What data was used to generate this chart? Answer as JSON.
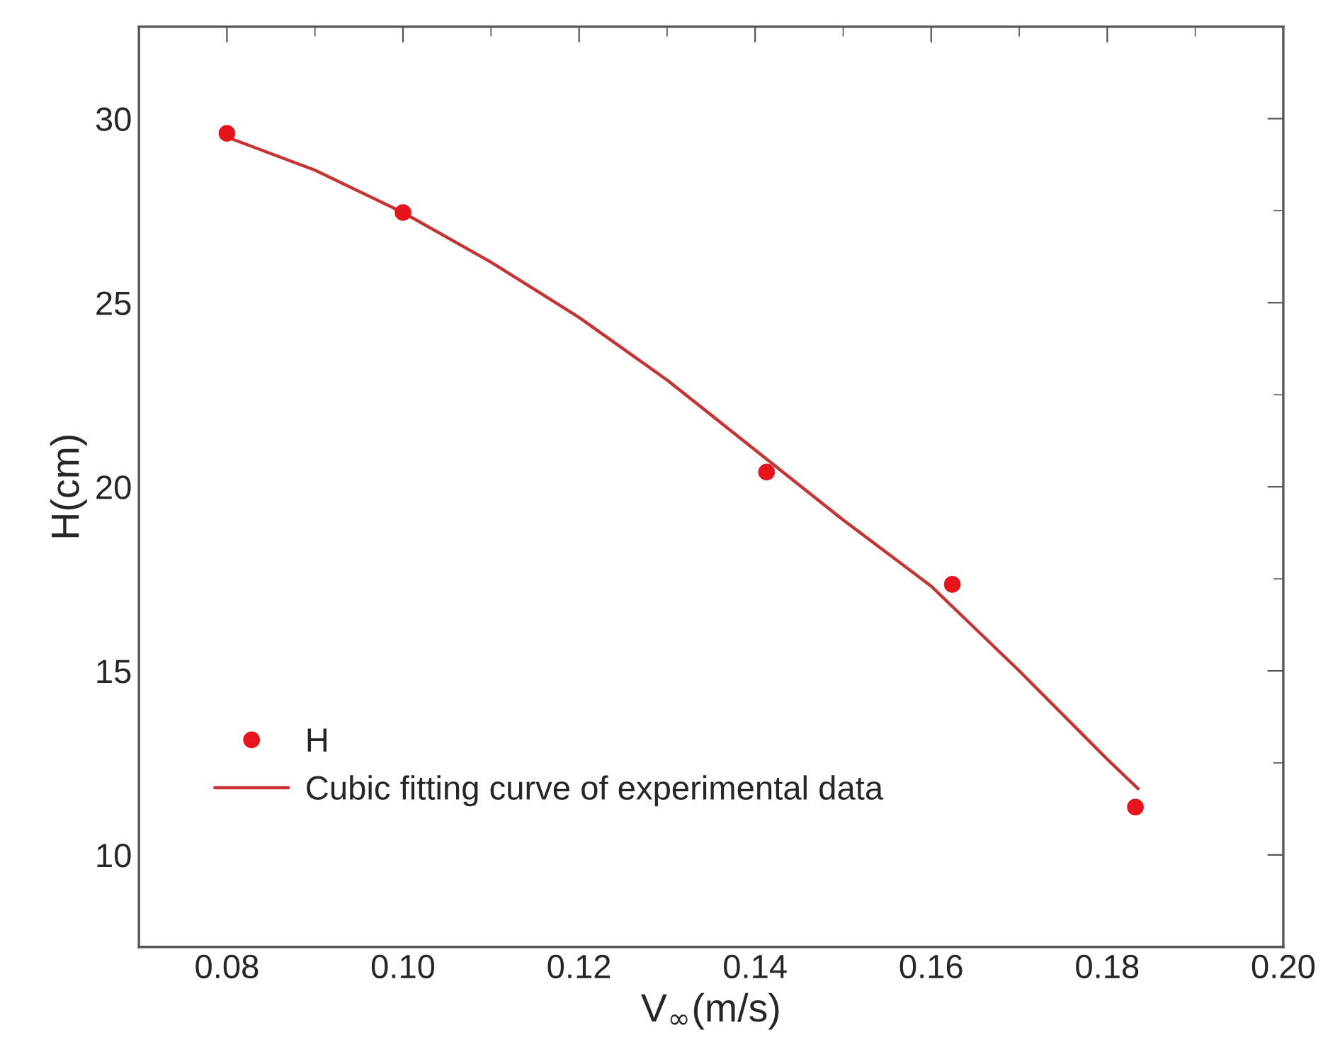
{
  "chart_data": {
    "type": "scatter",
    "xlabel": "V$_{∞}$(m/s)",
    "ylabel": "H(cm)",
    "xlim": [
      0.07,
      0.2
    ],
    "xticks": [
      {
        "value": 0.08,
        "label": "0.08"
      },
      {
        "value": 0.1,
        "label": "0.10"
      },
      {
        "value": 0.12,
        "label": "0.12"
      },
      {
        "value": 0.14,
        "label": "0.14"
      },
      {
        "value": 0.16,
        "label": "0.16"
      },
      {
        "value": 0.18,
        "label": "0.18"
      },
      {
        "value": 0.2,
        "label": "0.20"
      }
    ],
    "ylim": [
      7.5,
      32.5
    ],
    "yticks": [
      10,
      15,
      20,
      25,
      30
    ],
    "grid": false,
    "legend": "bottom left",
    "series": [
      {
        "name": "H",
        "marker": "circle",
        "color": "#e8141c",
        "x": [
          0.08,
          0.1,
          0.1413,
          0.1624,
          0.1832
        ],
        "values": [
          29.6,
          27.45,
          20.4,
          17.35,
          11.3
        ]
      },
      {
        "name": "Cubic fitting curve of experimental data",
        "type": "line",
        "marker": "none",
        "line_style": "solid",
        "color": "#c83232",
        "x": [
          0.08,
          0.09,
          0.1,
          0.11,
          0.12,
          0.13,
          0.14,
          0.15,
          0.16,
          0.17,
          0.18,
          0.1835
        ],
        "values": [
          29.5,
          28.6,
          27.45,
          26.1,
          24.6,
          22.9,
          21.0,
          19.1,
          17.3,
          15.0,
          12.6,
          11.8
        ]
      }
    ]
  }
}
